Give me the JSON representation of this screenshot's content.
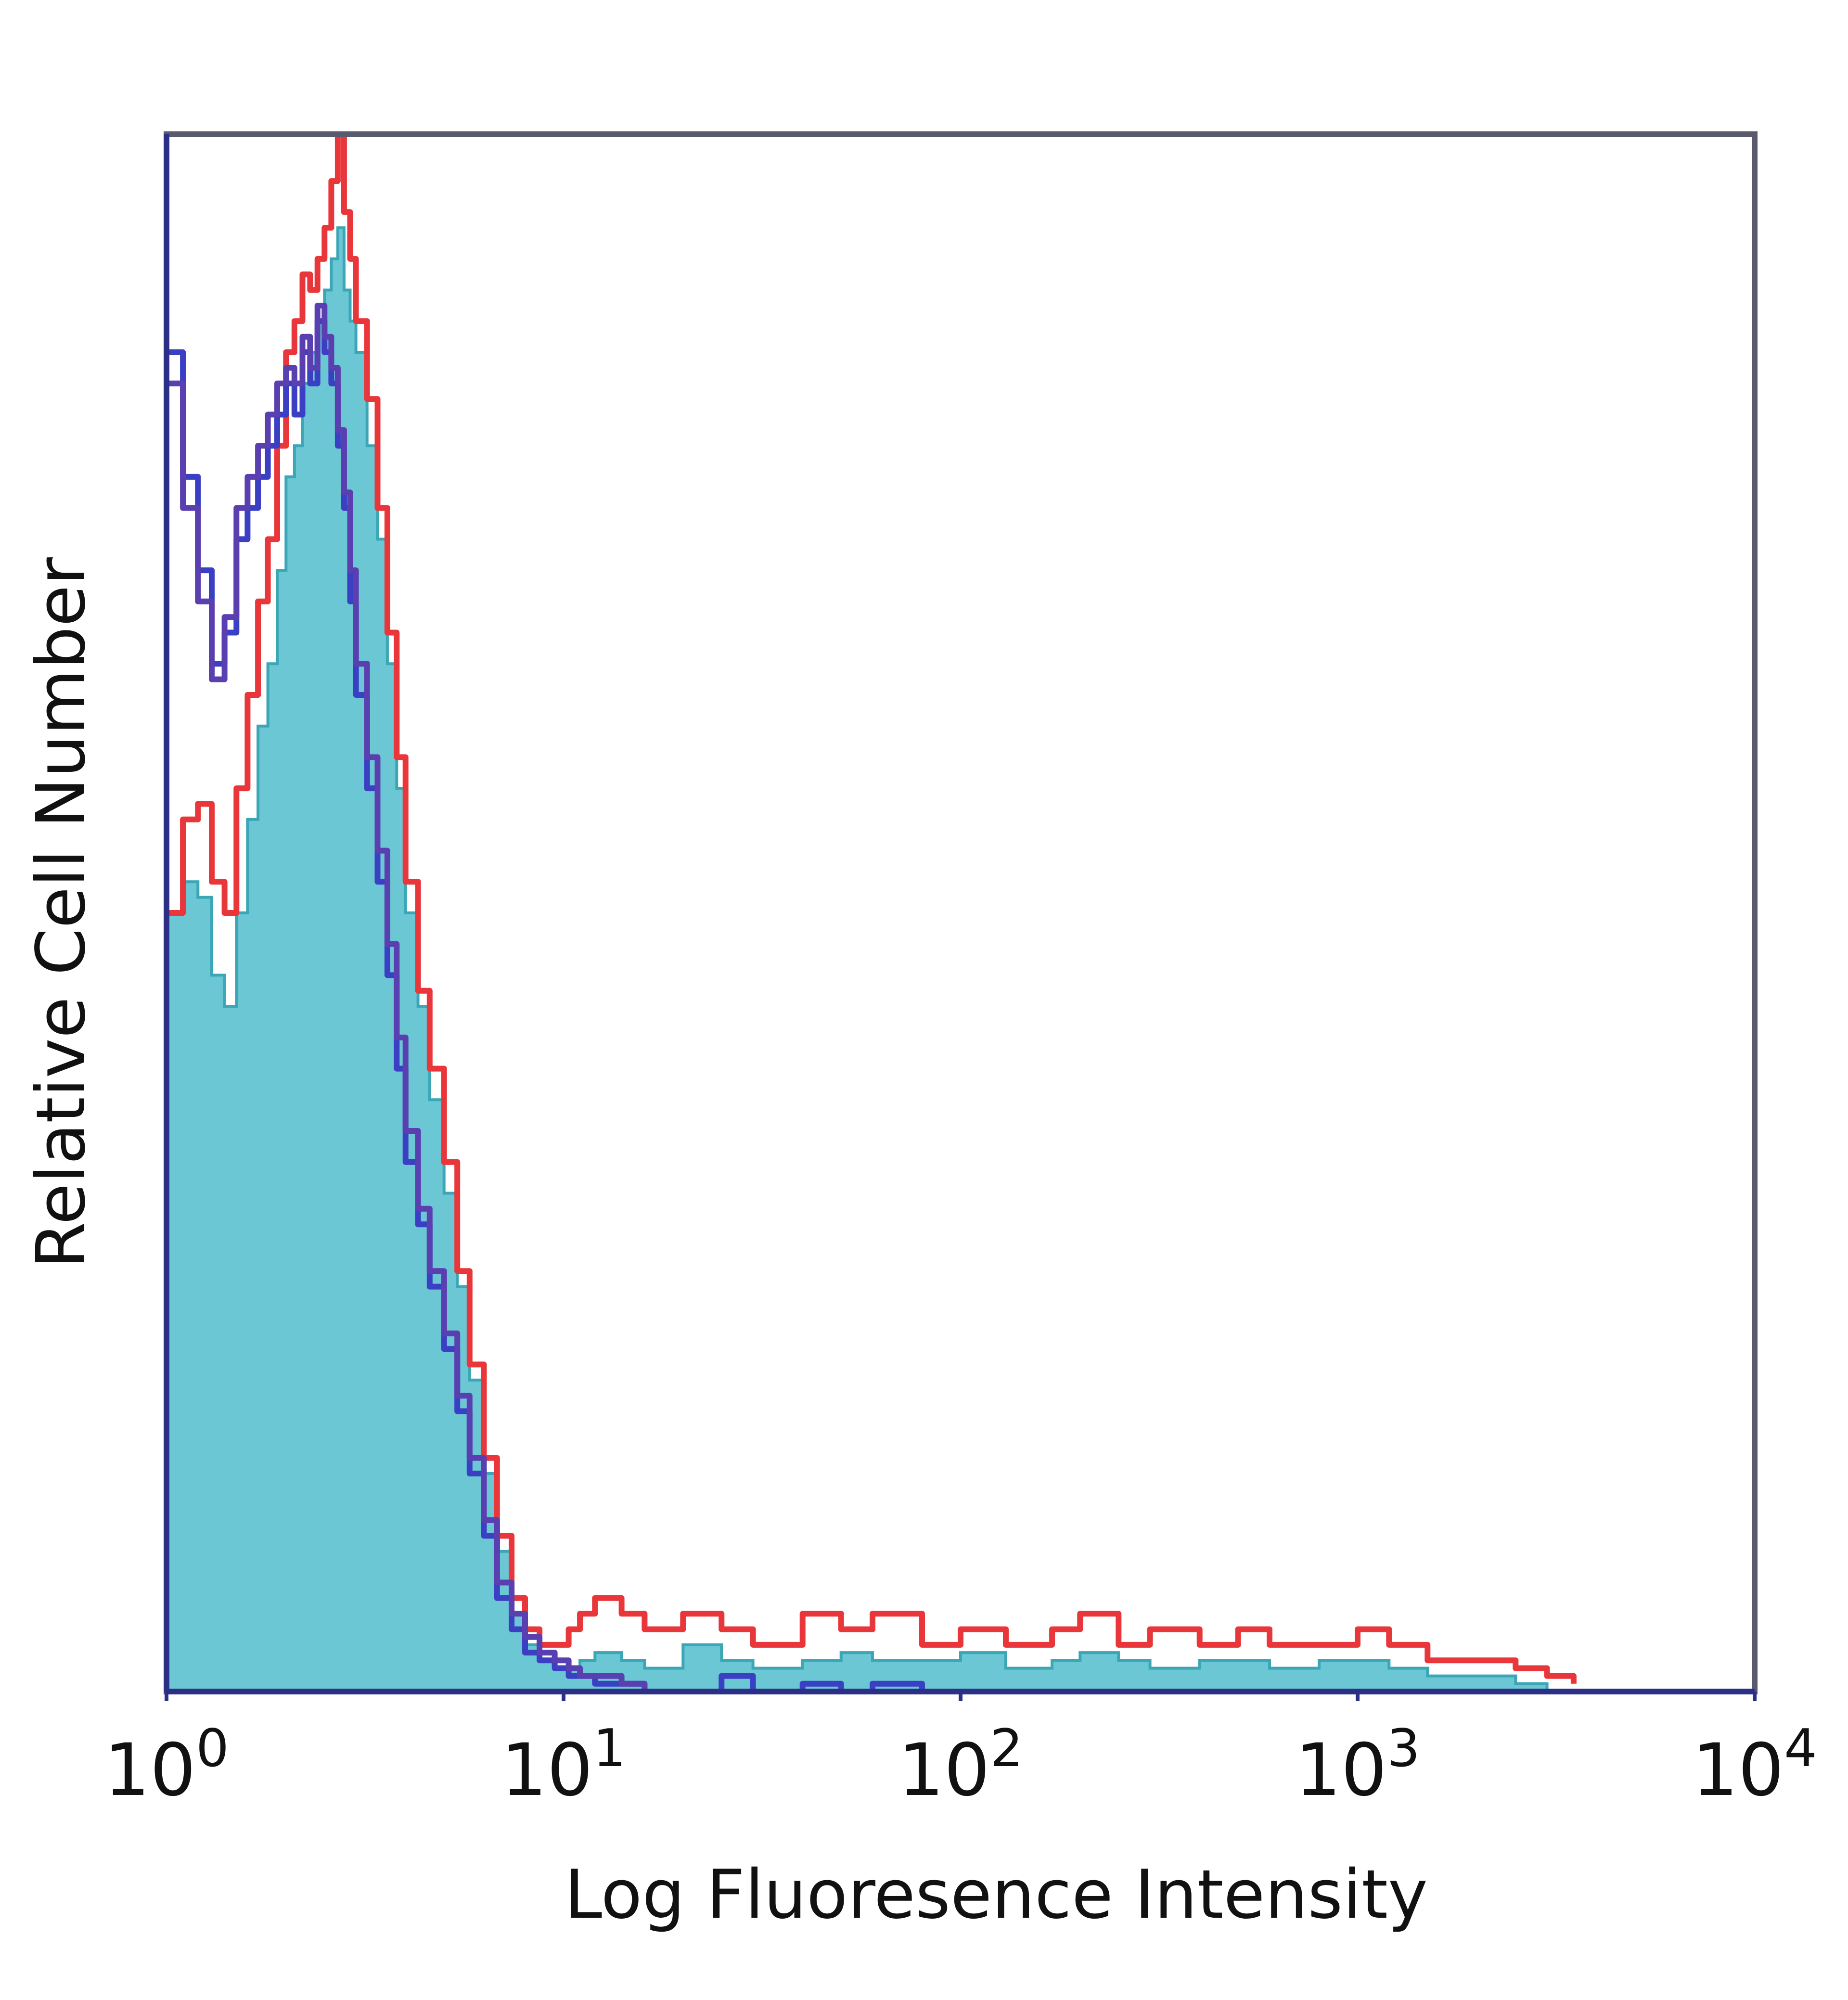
{
  "chart_data": {
    "type": "area",
    "xlabel": "Log Fluoresence Intensity",
    "ylabel": "Relative Cell Number",
    "x_scale": "log",
    "xlim": [
      1,
      10000
    ],
    "ylim": [
      0,
      100
    ],
    "x_ticks": [
      {
        "base": "10",
        "exp": "0",
        "value": 1
      },
      {
        "base": "10",
        "exp": "1",
        "value": 10
      },
      {
        "base": "10",
        "exp": "2",
        "value": 100
      },
      {
        "base": "10",
        "exp": "3",
        "value": 1000
      },
      {
        "base": "10",
        "exp": "4",
        "value": 10000
      }
    ],
    "grid": false,
    "series": [
      {
        "style": "filled",
        "color": "#6cc7d4",
        "x": [
          1,
          1.1,
          1.2,
          1.3,
          1.4,
          1.5,
          1.6,
          1.7,
          1.8,
          1.9,
          2.0,
          2.1,
          2.2,
          2.3,
          2.4,
          2.5,
          2.6,
          2.7,
          2.8,
          2.9,
          3.0,
          3.2,
          3.4,
          3.6,
          3.8,
          4.0,
          4.3,
          4.6,
          5.0,
          5.4,
          5.8,
          6.3,
          6.8,
          7.4,
          8.0,
          8.7,
          9.5,
          10.3,
          11,
          12,
          14,
          16,
          20,
          25,
          30,
          40,
          50,
          60,
          80,
          100,
          130,
          170,
          200,
          250,
          300,
          400,
          500,
          600,
          800,
          1000,
          1200,
          1500,
          2000,
          2500,
          3000
        ],
        "values": [
          50,
          52,
          51,
          46,
          44,
          50,
          56,
          62,
          66,
          72,
          78,
          80,
          84,
          86,
          88,
          90,
          92,
          94,
          90,
          88,
          86,
          80,
          74,
          66,
          58,
          50,
          44,
          38,
          32,
          26,
          20,
          14,
          9,
          5,
          3,
          2,
          1.5,
          1.5,
          2,
          2.5,
          2,
          1.5,
          3,
          2,
          1.5,
          2,
          2.5,
          2,
          2,
          2.5,
          1.5,
          2,
          2.5,
          2,
          1.5,
          2,
          2,
          1.5,
          2,
          2,
          1.5,
          1,
          1,
          0.5,
          0
        ]
      },
      {
        "style": "line",
        "color": "#e8363a",
        "x": [
          1,
          1.1,
          1.2,
          1.3,
          1.4,
          1.5,
          1.6,
          1.7,
          1.8,
          1.9,
          2.0,
          2.1,
          2.2,
          2.3,
          2.4,
          2.5,
          2.6,
          2.7,
          2.8,
          2.9,
          3.0,
          3.2,
          3.4,
          3.6,
          3.8,
          4.0,
          4.3,
          4.6,
          5.0,
          5.4,
          5.8,
          6.3,
          6.8,
          7.4,
          8.0,
          8.7,
          9.5,
          10.3,
          11,
          12,
          14,
          16,
          20,
          25,
          30,
          40,
          50,
          60,
          80,
          100,
          130,
          170,
          200,
          250,
          300,
          400,
          500,
          600,
          800,
          1000,
          1200,
          1500,
          2000,
          2500,
          3000,
          3500
        ],
        "values": [
          50,
          56,
          57,
          52,
          50,
          58,
          64,
          70,
          74,
          80,
          86,
          88,
          91,
          90,
          92,
          94,
          97,
          100,
          95,
          92,
          88,
          83,
          76,
          68,
          60,
          52,
          45,
          40,
          34,
          27,
          21,
          15,
          10,
          6,
          4,
          3,
          3,
          4,
          5,
          6,
          5,
          4,
          5,
          4,
          3,
          5,
          4,
          5,
          3,
          4,
          3,
          4,
          5,
          3,
          4,
          3,
          4,
          3,
          3,
          4,
          3,
          2,
          2,
          1.5,
          1,
          0.5
        ]
      },
      {
        "style": "line",
        "color": "#3a3fc4",
        "x": [
          1,
          1.1,
          1.2,
          1.3,
          1.4,
          1.5,
          1.6,
          1.7,
          1.8,
          1.9,
          2.0,
          2.1,
          2.2,
          2.3,
          2.4,
          2.5,
          2.6,
          2.7,
          2.8,
          2.9,
          3.0,
          3.2,
          3.4,
          3.6,
          3.8,
          4.0,
          4.3,
          4.6,
          5.0,
          5.4,
          5.8,
          6.3,
          6.8,
          7.4,
          8.0,
          8.7,
          9.5,
          10.3,
          11,
          12,
          14,
          16,
          20,
          25,
          30,
          40,
          50,
          60,
          80
        ],
        "values": [
          86,
          78,
          72,
          66,
          68,
          74,
          76,
          78,
          80,
          82,
          84,
          82,
          86,
          84,
          88,
          86,
          84,
          80,
          76,
          70,
          64,
          58,
          52,
          46,
          40,
          34,
          30,
          26,
          22,
          18,
          14,
          10,
          6,
          4,
          2.5,
          2,
          1.5,
          1,
          1,
          0.5,
          0.5,
          0,
          0,
          1,
          0,
          0.5,
          0,
          0.5,
          0
        ]
      },
      {
        "style": "line",
        "color": "#5a3fb0",
        "x": [
          1,
          1.1,
          1.2,
          1.3,
          1.4,
          1.5,
          1.6,
          1.7,
          1.8,
          1.9,
          2.0,
          2.1,
          2.2,
          2.3,
          2.4,
          2.5,
          2.6,
          2.7,
          2.8,
          2.9,
          3.0,
          3.2,
          3.4,
          3.6,
          3.8,
          4.0,
          4.3,
          4.6,
          5.0,
          5.4,
          5.8,
          6.3,
          6.8,
          7.4,
          8.0,
          8.7,
          9.5,
          10.3,
          11,
          12,
          14,
          16,
          20
        ],
        "values": [
          84,
          76,
          70,
          65,
          69,
          76,
          78,
          80,
          82,
          84,
          85,
          84,
          87,
          85,
          89,
          87,
          85,
          81,
          77,
          72,
          66,
          60,
          54,
          48,
          42,
          36,
          31,
          27,
          23,
          19,
          15,
          11,
          7,
          5,
          3.5,
          2.5,
          2,
          1.5,
          1,
          1,
          0.5,
          0,
          0
        ]
      }
    ]
  }
}
